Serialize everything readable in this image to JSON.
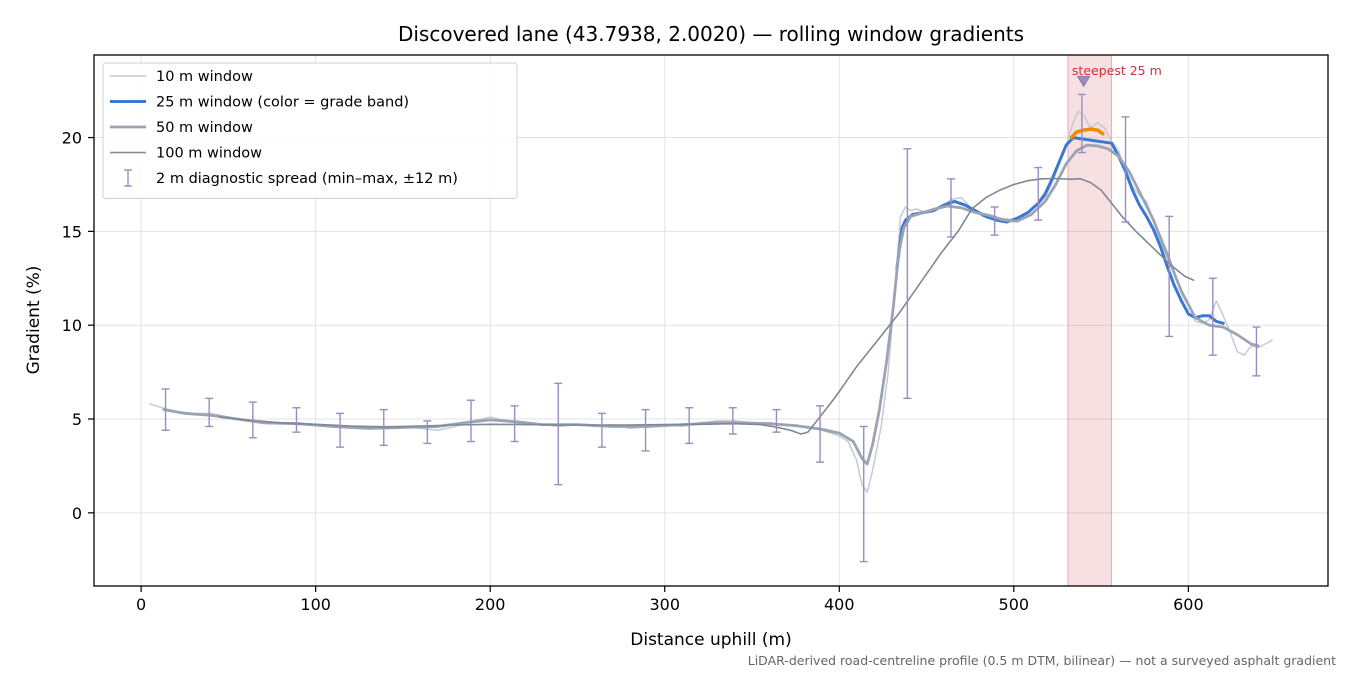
{
  "chart_data": {
    "type": "line",
    "title": "Discovered lane (43.7938, 2.0020) — rolling window gradients",
    "xlabel": "Distance uphill (m)",
    "ylabel": "Gradient (%)",
    "xlim": [
      -27,
      680
    ],
    "ylim": [
      -3.9,
      24.4
    ],
    "x_ticks": [
      0,
      100,
      200,
      300,
      400,
      500,
      600
    ],
    "y_ticks": [
      0,
      5,
      10,
      15,
      20
    ],
    "grid": true,
    "legend_position": "top-left",
    "caption": "LiDAR-derived road-centreline profile (0.5 m DTM, bilinear) — not a surveyed asphalt gradient",
    "annotation": {
      "label": "steepest 25 m",
      "x_range": [
        531,
        556
      ],
      "marker_x": 540,
      "marker_y": 23.1,
      "color": "#c8323c"
    },
    "series": [
      {
        "name": "10 m window",
        "color": "#c5cad3",
        "width": 1.5,
        "points": [
          [
            5,
            5.8
          ],
          [
            12,
            5.6
          ],
          [
            20,
            5.4
          ],
          [
            30,
            5.3
          ],
          [
            40,
            5.3
          ],
          [
            50,
            5.1
          ],
          [
            60,
            4.9
          ],
          [
            70,
            4.8
          ],
          [
            80,
            4.8
          ],
          [
            90,
            4.7
          ],
          [
            100,
            4.7
          ],
          [
            110,
            4.6
          ],
          [
            120,
            4.5
          ],
          [
            130,
            4.6
          ],
          [
            140,
            4.6
          ],
          [
            150,
            4.6
          ],
          [
            160,
            4.5
          ],
          [
            170,
            4.4
          ],
          [
            180,
            4.6
          ],
          [
            190,
            4.9
          ],
          [
            200,
            5.1
          ],
          [
            210,
            4.9
          ],
          [
            220,
            4.7
          ],
          [
            230,
            4.7
          ],
          [
            240,
            4.6
          ],
          [
            250,
            4.7
          ],
          [
            260,
            4.6
          ],
          [
            270,
            4.7
          ],
          [
            280,
            4.5
          ],
          [
            290,
            4.6
          ],
          [
            300,
            4.7
          ],
          [
            310,
            4.6
          ],
          [
            320,
            4.8
          ],
          [
            330,
            4.9
          ],
          [
            340,
            4.9
          ],
          [
            350,
            4.8
          ],
          [
            360,
            4.8
          ],
          [
            370,
            4.7
          ],
          [
            380,
            4.6
          ],
          [
            390,
            4.4
          ],
          [
            400,
            4.1
          ],
          [
            405,
            3.8
          ],
          [
            410,
            2.8
          ],
          [
            413,
            1.5
          ],
          [
            416,
            1.1
          ],
          [
            419,
            2.2
          ],
          [
            424,
            4.6
          ],
          [
            428,
            7.5
          ],
          [
            432,
            12.0
          ],
          [
            435,
            15.8
          ],
          [
            438,
            16.3
          ],
          [
            441,
            16.1
          ],
          [
            444,
            16.2
          ],
          [
            450,
            16.0
          ],
          [
            457,
            16.2
          ],
          [
            464,
            16.7
          ],
          [
            470,
            16.8
          ],
          [
            476,
            16.2
          ],
          [
            482,
            15.8
          ],
          [
            488,
            15.7
          ],
          [
            494,
            15.7
          ],
          [
            500,
            15.6
          ],
          [
            506,
            15.8
          ],
          [
            512,
            16.3
          ],
          [
            518,
            16.8
          ],
          [
            522,
            17.6
          ],
          [
            526,
            18.6
          ],
          [
            530,
            19.6
          ],
          [
            534,
            20.8
          ],
          [
            537,
            21.4
          ],
          [
            540,
            21.2
          ],
          [
            544,
            20.5
          ],
          [
            548,
            20.8
          ],
          [
            552,
            20.5
          ],
          [
            556,
            19.8
          ],
          [
            560,
            19.3
          ],
          [
            564,
            18.3
          ],
          [
            568,
            17.4
          ],
          [
            572,
            16.9
          ],
          [
            576,
            16.6
          ],
          [
            580,
            15.6
          ],
          [
            584,
            14.8
          ],
          [
            588,
            13.9
          ],
          [
            592,
            12.8
          ],
          [
            596,
            11.9
          ],
          [
            600,
            11.1
          ],
          [
            604,
            10.2
          ],
          [
            608,
            10.1
          ],
          [
            612,
            10.3
          ],
          [
            616,
            11.3
          ],
          [
            620,
            10.5
          ],
          [
            624,
            9.6
          ],
          [
            628,
            8.6
          ],
          [
            632,
            8.4
          ],
          [
            636,
            8.9
          ],
          [
            640,
            8.8
          ],
          [
            644,
            9.0
          ],
          [
            648,
            9.2
          ]
        ]
      },
      {
        "name": "25 m window (color = grade band)",
        "color": "#3a78d4",
        "width": 3,
        "points": [
          [
            433,
            13.0
          ],
          [
            436,
            15.2
          ],
          [
            438,
            15.6
          ],
          [
            442,
            15.9
          ],
          [
            448,
            16.0
          ],
          [
            454,
            16.1
          ],
          [
            460,
            16.4
          ],
          [
            466,
            16.6
          ],
          [
            472,
            16.4
          ],
          [
            478,
            16.1
          ],
          [
            484,
            15.8
          ],
          [
            490,
            15.6
          ],
          [
            496,
            15.5
          ],
          [
            502,
            15.7
          ],
          [
            508,
            16.0
          ],
          [
            514,
            16.5
          ],
          [
            518,
            17.0
          ],
          [
            522,
            17.8
          ],
          [
            526,
            18.7
          ],
          [
            530,
            19.6
          ],
          [
            534,
            20.0
          ],
          [
            556,
            19.7
          ],
          [
            560,
            19.0
          ],
          [
            564,
            18.2
          ],
          [
            568,
            17.2
          ],
          [
            572,
            16.4
          ],
          [
            576,
            15.8
          ],
          [
            580,
            15.1
          ],
          [
            584,
            14.2
          ],
          [
            588,
            13.1
          ],
          [
            592,
            12.1
          ],
          [
            596,
            11.3
          ],
          [
            600,
            10.6
          ],
          [
            604,
            10.4
          ],
          [
            608,
            10.5
          ],
          [
            612,
            10.5
          ],
          [
            616,
            10.2
          ],
          [
            620,
            10.1
          ]
        ]
      },
      {
        "name": "25 m window (color = grade band)",
        "color": "#f08c00",
        "width": 3.5,
        "legend": false,
        "points": [
          [
            533,
            20.0
          ],
          [
            536,
            20.3
          ],
          [
            540,
            20.4
          ],
          [
            544,
            20.45
          ],
          [
            548,
            20.4
          ],
          [
            551,
            20.2
          ]
        ]
      },
      {
        "name": "50 m window",
        "color": "#9aa4b2",
        "width": 2.8,
        "points": [
          [
            13,
            5.5
          ],
          [
            25,
            5.3
          ],
          [
            40,
            5.2
          ],
          [
            55,
            5.0
          ],
          [
            70,
            4.8
          ],
          [
            90,
            4.75
          ],
          [
            110,
            4.6
          ],
          [
            130,
            4.5
          ],
          [
            150,
            4.55
          ],
          [
            170,
            4.6
          ],
          [
            185,
            4.8
          ],
          [
            200,
            4.95
          ],
          [
            215,
            4.85
          ],
          [
            230,
            4.7
          ],
          [
            250,
            4.7
          ],
          [
            270,
            4.6
          ],
          [
            290,
            4.6
          ],
          [
            310,
            4.7
          ],
          [
            330,
            4.8
          ],
          [
            345,
            4.8
          ],
          [
            360,
            4.75
          ],
          [
            375,
            4.65
          ],
          [
            390,
            4.45
          ],
          [
            400,
            4.25
          ],
          [
            408,
            3.8
          ],
          [
            413,
            2.9
          ],
          [
            416,
            2.6
          ],
          [
            419,
            3.6
          ],
          [
            423,
            5.5
          ],
          [
            427,
            8.0
          ],
          [
            431,
            11.0
          ],
          [
            434,
            13.8
          ],
          [
            437,
            15.2
          ],
          [
            441,
            15.8
          ],
          [
            448,
            16.0
          ],
          [
            455,
            16.2
          ],
          [
            462,
            16.35
          ],
          [
            470,
            16.25
          ],
          [
            478,
            16.0
          ],
          [
            486,
            15.85
          ],
          [
            494,
            15.6
          ],
          [
            502,
            15.55
          ],
          [
            510,
            15.9
          ],
          [
            518,
            16.6
          ],
          [
            524,
            17.5
          ],
          [
            530,
            18.6
          ],
          [
            536,
            19.3
          ],
          [
            542,
            19.6
          ],
          [
            548,
            19.55
          ],
          [
            554,
            19.4
          ],
          [
            560,
            19.0
          ],
          [
            566,
            18.2
          ],
          [
            572,
            17.1
          ],
          [
            580,
            15.6
          ],
          [
            588,
            13.7
          ],
          [
            596,
            11.8
          ],
          [
            604,
            10.4
          ],
          [
            612,
            10.0
          ],
          [
            620,
            9.9
          ],
          [
            628,
            9.5
          ],
          [
            636,
            9.0
          ],
          [
            640,
            8.9
          ]
        ]
      },
      {
        "name": "100 m window",
        "color": "#808895",
        "width": 1.6,
        "points": [
          [
            45,
            5.1
          ],
          [
            60,
            4.95
          ],
          [
            80,
            4.8
          ],
          [
            100,
            4.72
          ],
          [
            120,
            4.62
          ],
          [
            140,
            4.58
          ],
          [
            160,
            4.62
          ],
          [
            180,
            4.68
          ],
          [
            200,
            4.72
          ],
          [
            220,
            4.7
          ],
          [
            240,
            4.68
          ],
          [
            260,
            4.68
          ],
          [
            280,
            4.68
          ],
          [
            300,
            4.7
          ],
          [
            320,
            4.72
          ],
          [
            340,
            4.75
          ],
          [
            355,
            4.7
          ],
          [
            365,
            4.55
          ],
          [
            372,
            4.4
          ],
          [
            378,
            4.2
          ],
          [
            382,
            4.3
          ],
          [
            388,
            5.0
          ],
          [
            398,
            6.2
          ],
          [
            410,
            7.8
          ],
          [
            422,
            9.2
          ],
          [
            434,
            10.6
          ],
          [
            446,
            12.2
          ],
          [
            458,
            13.8
          ],
          [
            468,
            15.0
          ],
          [
            476,
            16.2
          ],
          [
            484,
            16.8
          ],
          [
            492,
            17.2
          ],
          [
            500,
            17.5
          ],
          [
            508,
            17.7
          ],
          [
            516,
            17.8
          ],
          [
            524,
            17.82
          ],
          [
            532,
            17.78
          ],
          [
            538,
            17.8
          ],
          [
            544,
            17.6
          ],
          [
            550,
            17.2
          ],
          [
            556,
            16.5
          ],
          [
            562,
            15.8
          ],
          [
            570,
            15.0
          ],
          [
            580,
            14.1
          ],
          [
            590,
            13.2
          ],
          [
            598,
            12.6
          ],
          [
            603,
            12.4
          ]
        ]
      }
    ],
    "error_bars": {
      "name": "2 m diagnostic spread (min–max, ±12 m)",
      "color": "#9a8cc0",
      "points": [
        {
          "x": 14,
          "min": 4.4,
          "max": 6.6
        },
        {
          "x": 39,
          "min": 4.6,
          "max": 6.1
        },
        {
          "x": 64,
          "min": 4.0,
          "max": 5.9
        },
        {
          "x": 89,
          "min": 4.3,
          "max": 5.6
        },
        {
          "x": 114,
          "min": 3.5,
          "max": 5.3
        },
        {
          "x": 139,
          "min": 3.6,
          "max": 5.5
        },
        {
          "x": 164,
          "min": 3.7,
          "max": 4.9
        },
        {
          "x": 189,
          "min": 3.8,
          "max": 6.0
        },
        {
          "x": 214,
          "min": 3.8,
          "max": 5.7
        },
        {
          "x": 239,
          "min": 1.5,
          "max": 6.9
        },
        {
          "x": 264,
          "min": 3.5,
          "max": 5.3
        },
        {
          "x": 289,
          "min": 3.3,
          "max": 5.5
        },
        {
          "x": 314,
          "min": 3.7,
          "max": 5.6
        },
        {
          "x": 339,
          "min": 4.2,
          "max": 5.6
        },
        {
          "x": 364,
          "min": 4.3,
          "max": 5.5
        },
        {
          "x": 389,
          "min": 2.7,
          "max": 5.7
        },
        {
          "x": 414,
          "min": -2.6,
          "max": 4.6
        },
        {
          "x": 439,
          "min": 6.1,
          "max": 19.4
        },
        {
          "x": 464,
          "min": 14.7,
          "max": 17.8
        },
        {
          "x": 489,
          "min": 14.8,
          "max": 16.3
        },
        {
          "x": 514,
          "min": 15.6,
          "max": 18.4
        },
        {
          "x": 539,
          "min": 19.2,
          "max": 22.3
        },
        {
          "x": 564,
          "min": 15.5,
          "max": 21.1
        },
        {
          "x": 589,
          "min": 9.4,
          "max": 15.8
        },
        {
          "x": 614,
          "min": 8.4,
          "max": 12.5
        },
        {
          "x": 639,
          "min": 7.3,
          "max": 9.9
        }
      ]
    }
  }
}
